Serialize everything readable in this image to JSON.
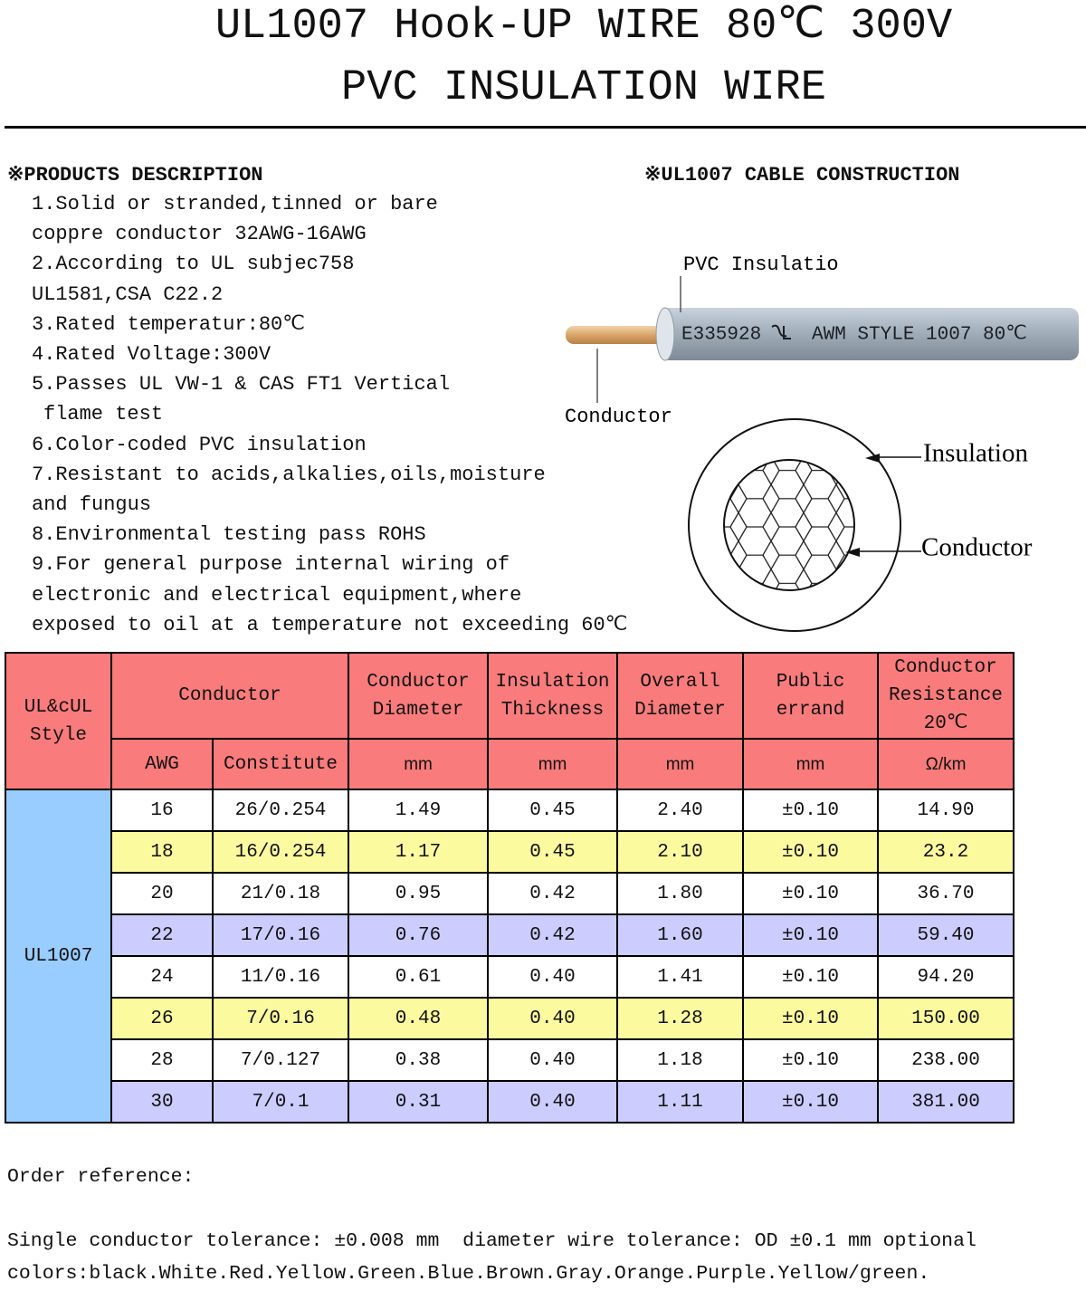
{
  "header": {
    "title_lines": [
      "UL1007 Hook-UP WIRE 80℃ 300V",
      "PVC INSULATION WIRE"
    ]
  },
  "description": {
    "heading": "※PRODUCTS DESCRIPTION",
    "lines": [
      "1.Solid or stranded,tinned or bare",
      "coppre conductor 32AWG-16AWG",
      "2.According to UL subjec758",
      "UL1581,CSA C22.2",
      "3.Rated temperatur:80℃",
      "4.Rated Voltage:300V",
      "5.Passes UL VW-1 & CAS FT1 Vertical",
      "flame test",
      "6.Color-coded PVC insulation",
      "7.Resistant to acids,alkalies,oils,moisture",
      "and fungus",
      "8.Environmental testing pass ROHS",
      "9.For general purpose internal wiring of",
      "electronic and electrical equipment,where",
      "exposed to oil at a temperature not exceeding 60℃"
    ]
  },
  "construction": {
    "heading": "※UL1007 CABLE CONSTRUCTION",
    "pvc_label": "PVC Insulatio",
    "print_code": "E335928",
    "print_text": "AWM STYLE 1007 80℃",
    "conductor_label": "Conductor",
    "insulation_callout": "Insulation",
    "conductor_callout": "Conductor"
  },
  "table": {
    "style_header": "UL&cUL\nStyle",
    "conductor_header": "Conductor",
    "other_headers": [
      "Conductor\nDiameter",
      "Insulation\nThickness",
      "Overall\nDiameter",
      "Public\nerrand",
      "Conductor\nResistance\n20℃"
    ],
    "sub_headers": [
      "AWG",
      "Constitute",
      "mm",
      "mm",
      "mm",
      "mm",
      "Ω/km"
    ],
    "style": "UL1007",
    "rows": [
      [
        "16",
        "26/0.254",
        "1.49",
        "0.45",
        "2.40",
        "±0.10",
        "14.90"
      ],
      [
        "18",
        "16/0.254",
        "1.17",
        "0.45",
        "2.10",
        "±0.10",
        "23.2"
      ],
      [
        "20",
        "21/0.18",
        "0.95",
        "0.42",
        "1.80",
        "±0.10",
        "36.70"
      ],
      [
        "22",
        "17/0.16",
        "0.76",
        "0.42",
        "1.60",
        "±0.10",
        "59.40"
      ],
      [
        "24",
        "11/0.16",
        "0.61",
        "0.40",
        "1.41",
        "±0.10",
        "94.20"
      ],
      [
        "26",
        "7/0.16",
        "0.48",
        "0.40",
        "1.28",
        "±0.10",
        "150.00"
      ],
      [
        "28",
        "7/0.127",
        "0.38",
        "0.40",
        "1.18",
        "±0.10",
        "238.00"
      ],
      [
        "30",
        "7/0.1",
        "0.31",
        "0.40",
        "1.11",
        "±0.10",
        "381.00"
      ]
    ]
  },
  "order": {
    "heading": "Order reference:",
    "lines": [
      "Single conductor tolerance: ±0.008 mm  diameter wire tolerance: OD ±0.1 mm optional",
      "colors:black.White.Red.Yellow.Green.Blue.Brown.Gray.Orange.Purple.Yellow/green."
    ]
  }
}
